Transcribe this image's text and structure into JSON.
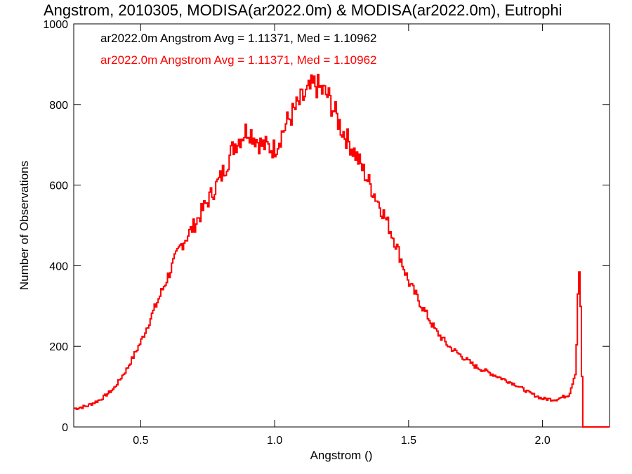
{
  "chart_data": {
    "type": "line",
    "title": "Angstrom, 2010305, MODISA(ar2022.0m) & MODISA(ar2022.0m), Eutrophi",
    "xlabel": "Angstrom ()",
    "ylabel": "Number of Observations",
    "xlim": [
      0.25,
      2.25
    ],
    "ylim": [
      0,
      1000
    ],
    "x_ticks": [
      0.5,
      1.0,
      1.5,
      2.0
    ],
    "x_tick_labels": [
      "0.5",
      "1.0",
      "1.5",
      "2.0"
    ],
    "y_ticks": [
      0,
      200,
      400,
      600,
      800,
      1000
    ],
    "y_tick_labels": [
      "0",
      "200",
      "400",
      "600",
      "800",
      "1000"
    ],
    "grid": false,
    "legend_position": "top-left",
    "colors": {
      "series_a": "#000000",
      "series_b": "#ff0000",
      "hist_line": "#ff0000",
      "axes": "#000000"
    },
    "series": [
      {
        "name": "ar2022.0m Angstrom Avg = 1.11371, Med = 1.10962",
        "color": "#000000",
        "x": [
          0.25,
          0.3,
          0.35,
          0.4,
          0.45,
          0.5,
          0.55,
          0.6,
          0.65,
          0.7,
          0.75,
          0.8,
          0.85,
          0.9,
          0.95,
          1.0,
          1.05,
          1.1,
          1.15,
          1.2,
          1.25,
          1.3,
          1.35,
          1.4,
          1.45,
          1.5,
          1.55,
          1.6,
          1.65,
          1.7,
          1.75,
          1.8,
          1.85,
          1.9,
          1.95,
          2.0,
          2.05,
          2.1,
          2.125,
          2.135,
          2.14,
          2.145,
          2.15,
          2.155,
          2.16,
          2.2,
          2.25
        ],
        "y": [
          45,
          52,
          68,
          95,
          145,
          210,
          290,
          370,
          450,
          500,
          560,
          620,
          700,
          740,
          700,
          690,
          760,
          810,
          850,
          820,
          740,
          680,
          610,
          540,
          460,
          360,
          300,
          240,
          200,
          175,
          150,
          135,
          120,
          105,
          85,
          70,
          68,
          80,
          140,
          400,
          350,
          250,
          0,
          0,
          0,
          0,
          0
        ]
      },
      {
        "name": "ar2022.0m Angstrom Avg = 1.11371, Med = 1.10962",
        "color": "#ff0000",
        "x": [
          0.25,
          0.3,
          0.35,
          0.4,
          0.45,
          0.5,
          0.55,
          0.6,
          0.65,
          0.7,
          0.75,
          0.8,
          0.85,
          0.9,
          0.95,
          1.0,
          1.05,
          1.1,
          1.15,
          1.2,
          1.25,
          1.3,
          1.35,
          1.4,
          1.45,
          1.5,
          1.55,
          1.6,
          1.65,
          1.7,
          1.75,
          1.8,
          1.85,
          1.9,
          1.95,
          2.0,
          2.05,
          2.1,
          2.125,
          2.135,
          2.14,
          2.145,
          2.15,
          2.155,
          2.16,
          2.2,
          2.25
        ],
        "y": [
          45,
          52,
          68,
          95,
          145,
          210,
          290,
          370,
          450,
          500,
          560,
          620,
          700,
          740,
          700,
          690,
          760,
          810,
          850,
          820,
          740,
          680,
          610,
          540,
          460,
          360,
          300,
          240,
          200,
          175,
          150,
          135,
          120,
          105,
          85,
          70,
          68,
          80,
          140,
          400,
          350,
          250,
          0,
          0,
          0,
          0,
          0
        ]
      }
    ]
  }
}
